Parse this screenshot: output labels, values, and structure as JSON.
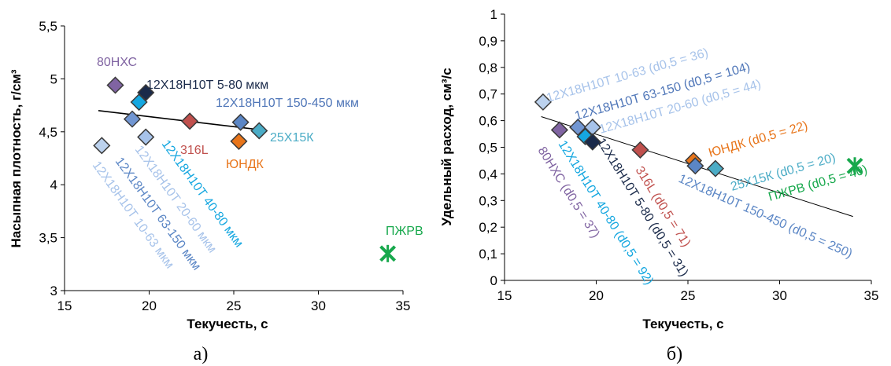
{
  "colors": {
    "light_blue": "#bcd2ee",
    "mid_blue": "#7196d2",
    "dark_navy": "#1a2a4a",
    "cyan": "#15a7e0",
    "purple": "#8064a2",
    "red": "#c0504d",
    "orange": "#e8751a",
    "teal": "#4bacc6",
    "green": "#17a84c",
    "fit_line": "#000000"
  },
  "chart_data": [
    {
      "type": "scatter",
      "caption": "а)",
      "xlabel": "Текучесть, с",
      "ylabel": "Насыпная плотность, г/см³",
      "xlim": [
        15,
        35
      ],
      "ylim": [
        3,
        5.5
      ],
      "xticks": [
        "15",
        "20",
        "25",
        "30",
        "35"
      ],
      "yticks": [
        "3",
        "3,5",
        "4",
        "4,5",
        "5",
        "5,5"
      ],
      "points": [
        {
          "x": 17.2,
          "y": 4.37,
          "color": "#bcd2ee",
          "marker": "diamond"
        },
        {
          "x": 18.0,
          "y": 4.94,
          "color": "#8064a2",
          "marker": "diamond"
        },
        {
          "x": 19.0,
          "y": 4.62,
          "color": "#7196d2",
          "marker": "diamond"
        },
        {
          "x": 19.4,
          "y": 4.78,
          "color": "#15a7e0",
          "marker": "diamond"
        },
        {
          "x": 19.8,
          "y": 4.45,
          "color": "#a7c3ea",
          "marker": "diamond"
        },
        {
          "x": 19.8,
          "y": 4.87,
          "color": "#1a2a4a",
          "marker": "diamond"
        },
        {
          "x": 22.4,
          "y": 4.6,
          "color": "#c0504d",
          "marker": "diamond"
        },
        {
          "x": 25.3,
          "y": 4.41,
          "color": "#e8751a",
          "marker": "diamond"
        },
        {
          "x": 25.4,
          "y": 4.59,
          "color": "#5b86c5",
          "marker": "diamond"
        },
        {
          "x": 26.5,
          "y": 4.51,
          "color": "#4bacc6",
          "marker": "diamond"
        },
        {
          "x": 34.1,
          "y": 3.35,
          "color": "#17a84c",
          "marker": "x"
        }
      ],
      "trendline": {
        "x": [
          17.0,
          26.5
        ],
        "y": [
          4.7,
          4.52
        ]
      },
      "annotations": [
        {
          "text": "80НХС",
          "color": "#8064a2",
          "rotate": false
        },
        {
          "text": "12Х18Н10Т 5-80 мкм",
          "color": "#1a2a4a",
          "rotate": false
        },
        {
          "text": "12Х18Н10Т 150-450 мкм",
          "color": "#4f76b8",
          "rotate": false
        },
        {
          "text": "316L",
          "color": "#c0504d",
          "rotate": false
        },
        {
          "text": "ЮНДК",
          "color": "#e8751a",
          "rotate": false
        },
        {
          "text": "25Х15К",
          "color": "#4bacc6",
          "rotate": false
        },
        {
          "text": "ПЖРВ",
          "color": "#17a84c",
          "rotate": false
        },
        {
          "text": "12Х18Н10Т 10-63 мкм",
          "color": "#a7c3ea",
          "rotate": true
        },
        {
          "text": "12Х18Н10Т 63-150 мкм",
          "color": "#5b86c5",
          "rotate": true
        },
        {
          "text": "12Х18Н10Т 20-60 мкм",
          "color": "#a7c3ea",
          "rotate": true
        },
        {
          "text": "12Х18Н10Т 40-80 мкм",
          "color": "#15a7e0",
          "rotate": true
        }
      ]
    },
    {
      "type": "scatter",
      "caption": "б)",
      "xlabel": "Текучесть, с",
      "ylabel": "Удельный расход, см³/с",
      "xlim": [
        15,
        35
      ],
      "ylim": [
        0,
        1
      ],
      "xticks": [
        "15",
        "20",
        "25",
        "30",
        "35"
      ],
      "yticks": [
        "0",
        "0,1",
        "0,2",
        "0,3",
        "0,4",
        "0,5",
        "0,6",
        "0,7",
        "0,8",
        "0,9",
        "1"
      ],
      "points": [
        {
          "x": 17.1,
          "y": 0.67,
          "color": "#bcd2ee",
          "marker": "diamond"
        },
        {
          "x": 18.0,
          "y": 0.565,
          "color": "#8064a2",
          "marker": "diamond"
        },
        {
          "x": 19.0,
          "y": 0.575,
          "color": "#7196d2",
          "marker": "diamond"
        },
        {
          "x": 19.4,
          "y": 0.54,
          "color": "#15a7e0",
          "marker": "diamond"
        },
        {
          "x": 19.8,
          "y": 0.575,
          "color": "#a7c3ea",
          "marker": "diamond"
        },
        {
          "x": 19.8,
          "y": 0.52,
          "color": "#1a2a4a",
          "marker": "diamond"
        },
        {
          "x": 22.4,
          "y": 0.49,
          "color": "#c0504d",
          "marker": "diamond"
        },
        {
          "x": 25.3,
          "y": 0.45,
          "color": "#e8751a",
          "marker": "diamond"
        },
        {
          "x": 25.4,
          "y": 0.43,
          "color": "#5b86c5",
          "marker": "diamond"
        },
        {
          "x": 26.5,
          "y": 0.42,
          "color": "#4bacc6",
          "marker": "diamond"
        },
        {
          "x": 34.1,
          "y": 0.43,
          "color": "#17a84c",
          "marker": "x"
        }
      ],
      "trendline": {
        "x": [
          17.0,
          34.0
        ],
        "y": [
          0.615,
          0.24
        ]
      },
      "annotations": [
        {
          "text": "12Х18Н10Т  10-63 (d0,5 = 36)",
          "color": "#a7c3ea"
        },
        {
          "text": "12Х18Н10Т  63-150 (d0,5 = 104)",
          "color": "#4f76b8"
        },
        {
          "text": "12Х18Н10Т  20-60 (d0,5 = 44)",
          "color": "#a7c3ea"
        },
        {
          "text": "ЮНДК (d0,5 = 22)",
          "color": "#e8751a"
        },
        {
          "text": "25Х15К (d0,5 = 20)",
          "color": "#4bacc6"
        },
        {
          "text": "ПЖРВ (d0,5 = 40)",
          "color": "#17a84c"
        },
        {
          "text": "80НХС (d0,5 = 37)",
          "color": "#8064a2"
        },
        {
          "text": "12Х18Н10Т 40-80 (d0,5 = 92)",
          "color": "#15a7e0"
        },
        {
          "text": "12Х18Н10Т 5-80 (d0,5 = 31)",
          "color": "#1a2a4a"
        },
        {
          "text": "316L (d0,5 = 71)",
          "color": "#c0504d"
        },
        {
          "text": "12Х18Н10Т  150-450 (d0,5 = 250)",
          "color": "#5b86c5"
        }
      ]
    }
  ]
}
